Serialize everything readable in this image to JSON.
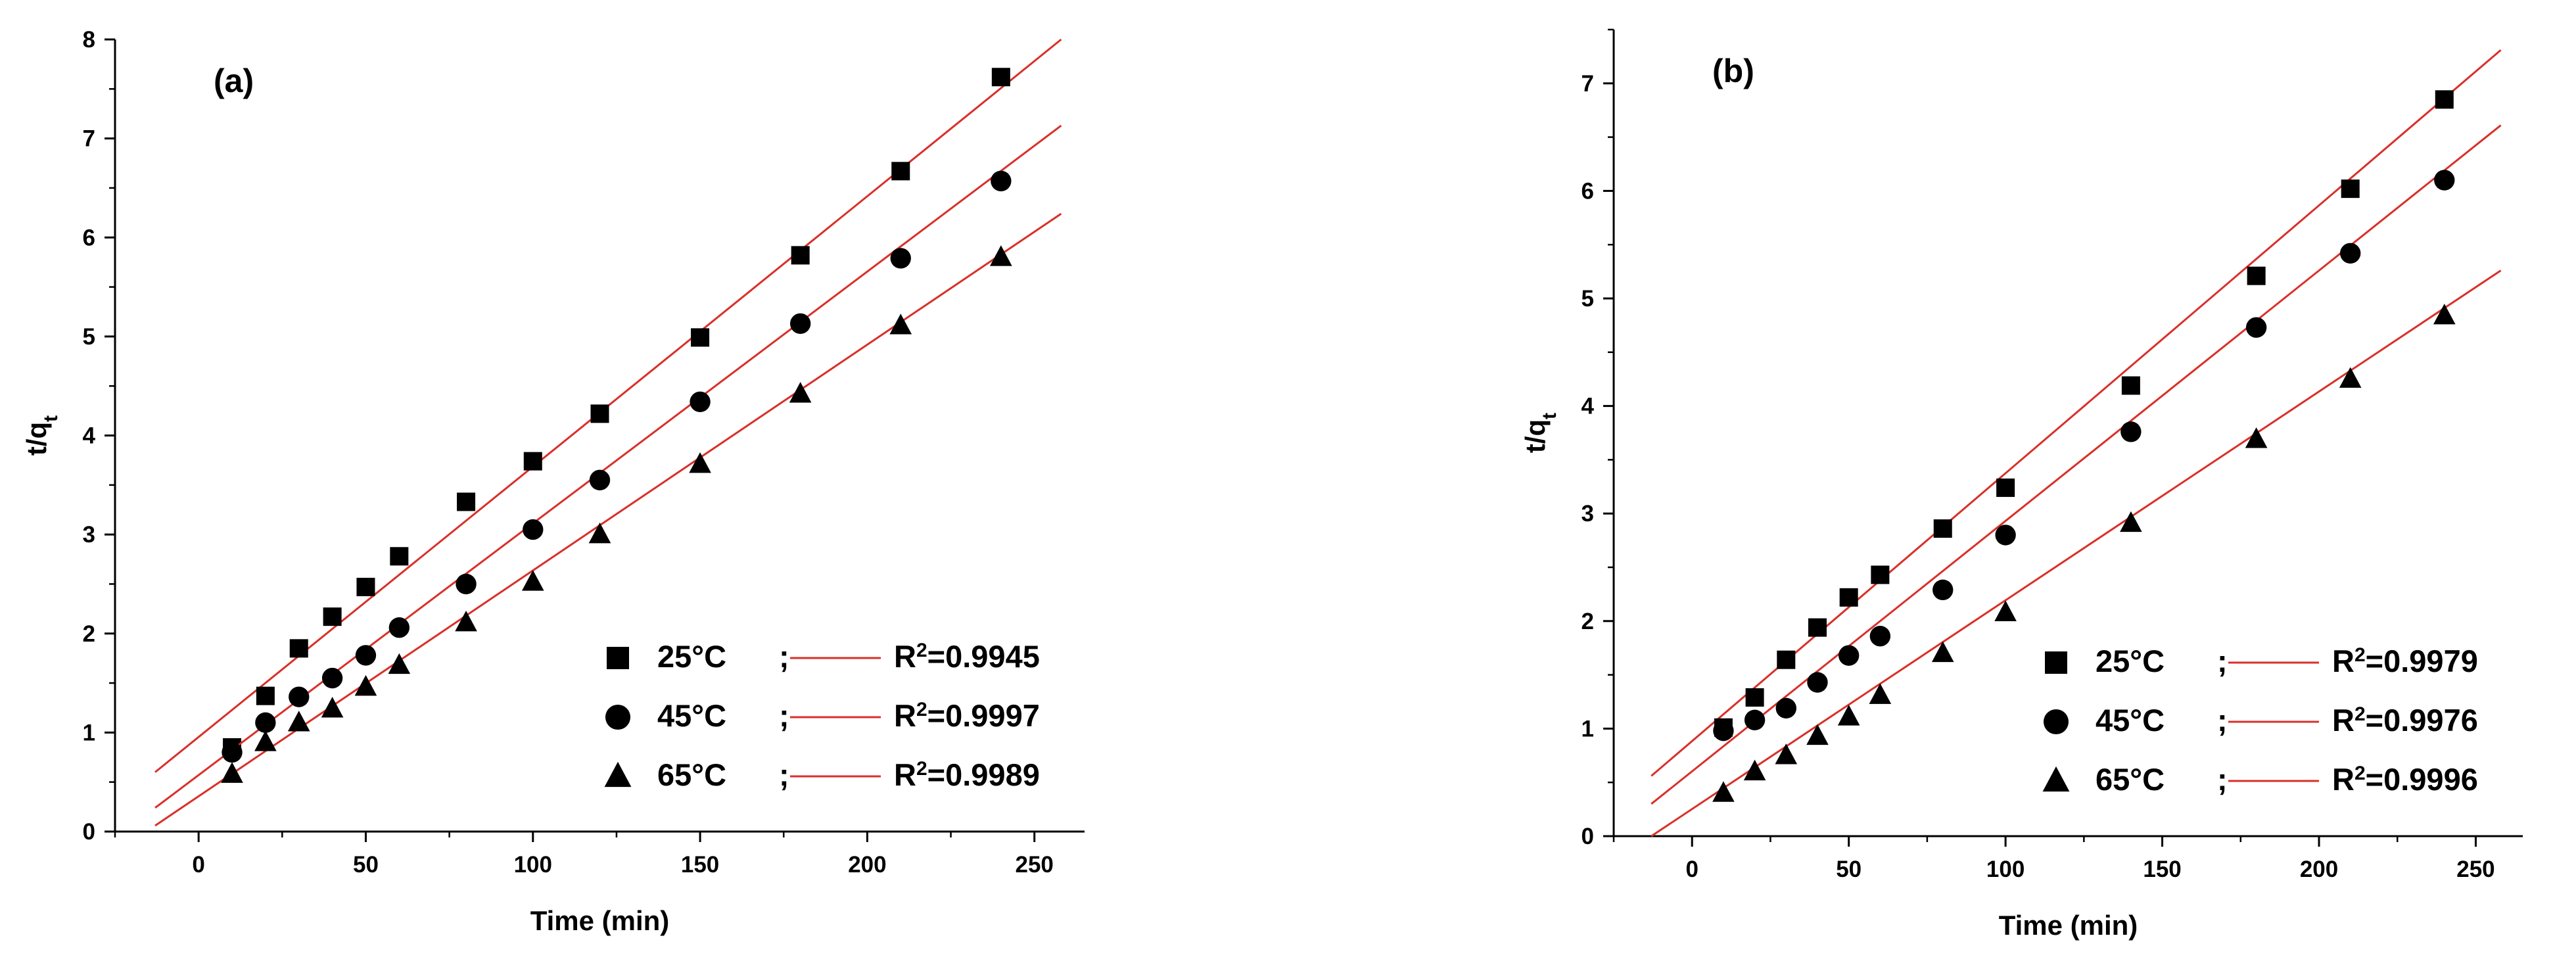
{
  "chart_data": [
    {
      "type": "scatter",
      "panel_label": "(a)",
      "xlabel": "Time (min)",
      "ylabel": "t/q",
      "ylabel_sub": "t",
      "xlim": [
        -25,
        265
      ],
      "ylim": [
        0,
        8
      ],
      "x_ticks": [
        0,
        50,
        100,
        150,
        200,
        250
      ],
      "y_ticks": [
        0,
        1,
        2,
        3,
        4,
        5,
        6,
        7,
        8
      ],
      "fit_color": "#d9302a",
      "legend_position": "bottom-right",
      "series": [
        {
          "name": "25°C",
          "marker": "square",
          "r2_label": "R",
          "r2_sup": "2",
          "r2_value": "=0.9945",
          "fit_x": [
            -13,
            258
          ],
          "fit_y": [
            0.6,
            8.0
          ],
          "x": [
            10,
            20,
            30,
            40,
            50,
            60,
            80,
            100,
            120,
            150,
            180,
            210,
            240
          ],
          "y": [
            0.85,
            1.37,
            1.85,
            2.17,
            2.47,
            2.78,
            3.33,
            3.74,
            4.22,
            4.99,
            5.82,
            6.67,
            7.62
          ]
        },
        {
          "name": "45°C",
          "marker": "circle",
          "r2_label": "R",
          "r2_sup": "2",
          "r2_value": "=0.9997",
          "fit_x": [
            -13,
            258
          ],
          "fit_y": [
            0.24,
            7.13
          ],
          "x": [
            10,
            20,
            30,
            40,
            50,
            60,
            80,
            100,
            120,
            150,
            180,
            210,
            240
          ],
          "y": [
            0.8,
            1.1,
            1.36,
            1.55,
            1.78,
            2.06,
            2.5,
            3.05,
            3.55,
            4.34,
            5.13,
            5.79,
            6.57
          ]
        },
        {
          "name": "65°C",
          "marker": "triangle",
          "r2_label": "R",
          "r2_sup": "2",
          "r2_value": "=0.9989",
          "fit_x": [
            -13,
            258
          ],
          "fit_y": [
            0.06,
            6.24
          ],
          "x": [
            10,
            20,
            30,
            40,
            50,
            60,
            80,
            100,
            120,
            150,
            180,
            210,
            240
          ],
          "y": [
            0.58,
            0.9,
            1.1,
            1.24,
            1.46,
            1.68,
            2.11,
            2.52,
            3.0,
            3.71,
            4.42,
            5.11,
            5.8
          ]
        }
      ]
    },
    {
      "type": "scatter",
      "panel_label": "(b)",
      "xlabel": "Time (min)",
      "ylabel": "t/q",
      "ylabel_sub": "t",
      "xlim": [
        -25,
        265
      ],
      "ylim": [
        0,
        7.5
      ],
      "x_ticks": [
        0,
        50,
        100,
        150,
        200,
        250
      ],
      "y_ticks": [
        0,
        1,
        2,
        3,
        4,
        5,
        6,
        7
      ],
      "fit_color": "#d9302a",
      "legend_position": "bottom-right",
      "series": [
        {
          "name": "25°C",
          "marker": "square",
          "r2_label": "R",
          "r2_sup": "2",
          "r2_value": "=0.9979",
          "fit_x": [
            -13,
            258
          ],
          "fit_y": [
            0.56,
            7.31
          ],
          "x": [
            10,
            20,
            30,
            40,
            50,
            60,
            80,
            100,
            140,
            180,
            210,
            240
          ],
          "y": [
            1.01,
            1.29,
            1.64,
            1.94,
            2.22,
            2.43,
            2.86,
            3.24,
            4.19,
            5.21,
            6.02,
            6.85
          ]
        },
        {
          "name": "45°C",
          "marker": "circle",
          "r2_label": "R",
          "r2_sup": "2",
          "r2_value": "=0.9976",
          "fit_x": [
            -13,
            258
          ],
          "fit_y": [
            0.3,
            6.61
          ],
          "x": [
            10,
            20,
            30,
            40,
            50,
            60,
            80,
            100,
            140,
            180,
            210,
            240
          ],
          "y": [
            0.98,
            1.08,
            1.19,
            1.43,
            1.68,
            1.86,
            2.29,
            2.8,
            3.76,
            4.73,
            5.42,
            6.1
          ]
        },
        {
          "name": "65°C",
          "marker": "triangle",
          "r2_label": "R",
          "r2_sup": "2",
          "r2_value": "=0.9996",
          "fit_x": [
            -13,
            258
          ],
          "fit_y": [
            0.0,
            5.26
          ],
          "x": [
            10,
            20,
            30,
            40,
            50,
            60,
            80,
            100,
            140,
            180,
            210,
            240
          ],
          "y": [
            0.4,
            0.6,
            0.75,
            0.93,
            1.11,
            1.31,
            1.7,
            2.08,
            2.91,
            3.69,
            4.25,
            4.84
          ]
        }
      ]
    }
  ]
}
